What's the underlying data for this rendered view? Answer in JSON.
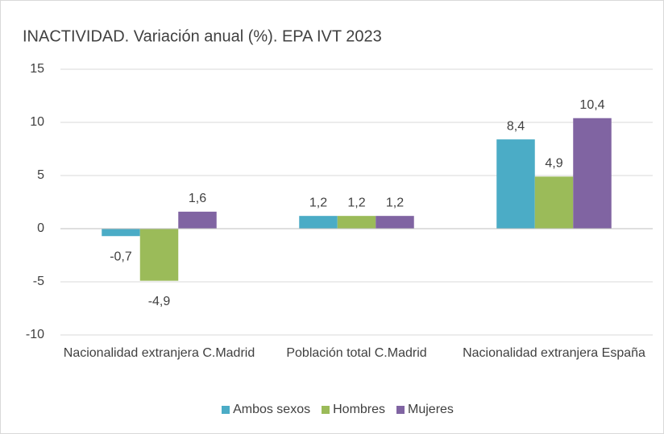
{
  "chart_data": {
    "type": "bar",
    "title": "INACTIVIDAD.  Variación anual (%). EPA IVT 2023",
    "categories": [
      "Nacionalidad extranjera C.Madrid",
      "Población total C.Madrid",
      "Nacionalidad extranjera España"
    ],
    "series": [
      {
        "name": "Ambos sexos",
        "color": "#4bacc6",
        "values": [
          -0.7,
          1.2,
          8.4
        ],
        "value_labels": [
          "-0,7",
          "1,2",
          "8,4"
        ]
      },
      {
        "name": "Hombres",
        "color": "#9bbb59",
        "values": [
          -4.9,
          1.2,
          4.9
        ],
        "value_labels": [
          "-4,9",
          "1,2",
          "4,9"
        ]
      },
      {
        "name": "Mujeres",
        "color": "#8064a2",
        "values": [
          1.6,
          1.2,
          10.4
        ],
        "value_labels": [
          "1,6",
          "1,2",
          "10,4"
        ]
      }
    ],
    "ylim": [
      -10,
      15
    ],
    "yticks": [
      -10,
      -5,
      0,
      5,
      10,
      15
    ],
    "grid": true,
    "legend": "bottom"
  }
}
